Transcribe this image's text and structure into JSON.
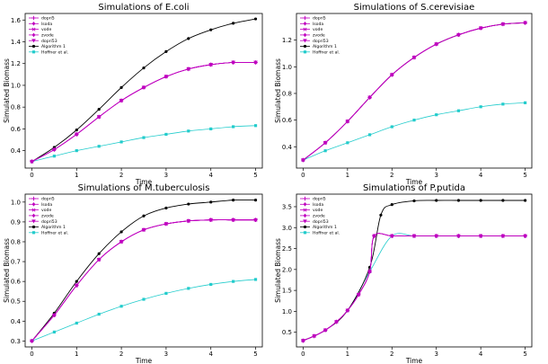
{
  "chart_data": [
    {
      "type": "line",
      "title": "Simulations of E.coli",
      "xlabel": "Time",
      "ylabel": "Simulated Biomass",
      "xlim": [
        -0.15,
        5.15
      ],
      "ylim": [
        0.24,
        1.66
      ],
      "xticks": [
        "0",
        "1",
        "2",
        "3",
        "4",
        "5"
      ],
      "yticks": [
        "0.4",
        "0.6",
        "0.8",
        "1.0",
        "1.2",
        "1.4",
        "1.6"
      ],
      "legend_position": "top-left",
      "series": [
        {
          "name": "dopri5",
          "color": "#bf00bf",
          "marker": "plus",
          "x": [
            0,
            0.5,
            1,
            1.5,
            2,
            2.5,
            3,
            3.5,
            4,
            4.5,
            5
          ],
          "y": [
            0.3,
            0.41,
            0.55,
            0.71,
            0.86,
            0.98,
            1.08,
            1.15,
            1.19,
            1.21,
            1.21
          ]
        },
        {
          "name": "lsoda",
          "color": "#bf00bf",
          "marker": "diamond",
          "x": [
            0,
            0.5,
            1,
            1.5,
            2,
            2.5,
            3,
            3.5,
            4,
            4.5,
            5
          ],
          "y": [
            0.3,
            0.41,
            0.55,
            0.71,
            0.86,
            0.98,
            1.08,
            1.15,
            1.19,
            1.21,
            1.21
          ]
        },
        {
          "name": "vode",
          "color": "#bf00bf",
          "marker": "x",
          "x": [
            0,
            0.5,
            1,
            1.5,
            2,
            2.5,
            3,
            3.5,
            4,
            4.5,
            5
          ],
          "y": [
            0.3,
            0.41,
            0.55,
            0.71,
            0.86,
            0.98,
            1.08,
            1.15,
            1.19,
            1.21,
            1.21
          ]
        },
        {
          "name": "zvode",
          "color": "#bf00bf",
          "marker": "diamond",
          "x": [
            0,
            0.5,
            1,
            1.5,
            2,
            2.5,
            3,
            3.5,
            4,
            4.5,
            5
          ],
          "y": [
            0.3,
            0.41,
            0.55,
            0.71,
            0.86,
            0.98,
            1.08,
            1.15,
            1.19,
            1.21,
            1.21
          ]
        },
        {
          "name": "dopri53",
          "color": "#bf00bf",
          "marker": "tri",
          "x": [
            0,
            0.5,
            1,
            1.5,
            2,
            2.5,
            3,
            3.5,
            4,
            4.5,
            5
          ],
          "y": [
            0.3,
            0.41,
            0.55,
            0.71,
            0.86,
            0.98,
            1.08,
            1.15,
            1.19,
            1.21,
            1.21
          ]
        },
        {
          "name": "Algorithm 1",
          "color": "#000000",
          "marker": "dot",
          "x": [
            0,
            0.5,
            1,
            1.5,
            2,
            2.5,
            3,
            3.5,
            4,
            4.5,
            5
          ],
          "y": [
            0.3,
            0.43,
            0.59,
            0.78,
            0.98,
            1.16,
            1.31,
            1.43,
            1.51,
            1.57,
            1.61
          ]
        },
        {
          "name": "Hoffner et al.",
          "color": "#22cccc",
          "marker": "square",
          "x": [
            0,
            0.5,
            1,
            1.5,
            2,
            2.5,
            3,
            3.5,
            4,
            4.5,
            5
          ],
          "y": [
            0.3,
            0.35,
            0.4,
            0.44,
            0.48,
            0.52,
            0.55,
            0.58,
            0.6,
            0.62,
            0.63
          ]
        }
      ]
    },
    {
      "type": "line",
      "title": "Simulations of S.cerevisiae",
      "xlabel": "Time",
      "ylabel": "Simulated Biomass",
      "xlim": [
        -0.15,
        5.15
      ],
      "ylim": [
        0.24,
        1.4
      ],
      "xticks": [
        "0",
        "1",
        "2",
        "3",
        "4",
        "5"
      ],
      "yticks": [
        "0.4",
        "0.6",
        "0.8",
        "1.0",
        "1.2"
      ],
      "legend_position": "top-left",
      "series": [
        {
          "name": "dopri5",
          "color": "#bf00bf",
          "marker": "plus",
          "x": [
            0,
            0.5,
            1,
            1.5,
            2,
            2.5,
            3,
            3.5,
            4,
            4.5,
            5
          ],
          "y": [
            0.3,
            0.43,
            0.59,
            0.77,
            0.94,
            1.07,
            1.17,
            1.24,
            1.29,
            1.32,
            1.33
          ]
        },
        {
          "name": "lsoda",
          "color": "#bf00bf",
          "marker": "diamond",
          "x": [
            0,
            0.5,
            1,
            1.5,
            2,
            2.5,
            3,
            3.5,
            4,
            4.5,
            5
          ],
          "y": [
            0.3,
            0.43,
            0.59,
            0.77,
            0.94,
            1.07,
            1.17,
            1.24,
            1.29,
            1.32,
            1.33
          ]
        },
        {
          "name": "vode",
          "color": "#bf00bf",
          "marker": "x",
          "x": [
            0,
            0.5,
            1,
            1.5,
            2,
            2.5,
            3,
            3.5,
            4,
            4.5,
            5
          ],
          "y": [
            0.3,
            0.43,
            0.59,
            0.77,
            0.94,
            1.07,
            1.17,
            1.24,
            1.29,
            1.32,
            1.33
          ]
        },
        {
          "name": "zvode",
          "color": "#bf00bf",
          "marker": "diamond",
          "x": [
            0,
            0.5,
            1,
            1.5,
            2,
            2.5,
            3,
            3.5,
            4,
            4.5,
            5
          ],
          "y": [
            0.3,
            0.43,
            0.59,
            0.77,
            0.94,
            1.07,
            1.17,
            1.24,
            1.29,
            1.32,
            1.33
          ]
        },
        {
          "name": "dopri53",
          "color": "#bf00bf",
          "marker": "tri",
          "x": [
            0,
            0.5,
            1,
            1.5,
            2,
            2.5,
            3,
            3.5,
            4,
            4.5,
            5
          ],
          "y": [
            0.3,
            0.43,
            0.59,
            0.77,
            0.94,
            1.07,
            1.17,
            1.24,
            1.29,
            1.32,
            1.33
          ]
        },
        {
          "name": "Algorithm 1",
          "color": "#000000",
          "marker": "dot",
          "x": [
            0,
            0.5,
            1,
            1.5,
            2,
            2.5,
            3,
            3.5,
            4,
            4.5,
            5
          ],
          "y": [
            0.3,
            0.43,
            0.59,
            0.77,
            0.94,
            1.07,
            1.17,
            1.24,
            1.29,
            1.32,
            1.33
          ]
        },
        {
          "name": "Hoffner et al.",
          "color": "#22cccc",
          "marker": "square",
          "x": [
            0,
            0.5,
            1,
            1.5,
            2,
            2.5,
            3,
            3.5,
            4,
            4.5,
            5
          ],
          "y": [
            0.3,
            0.37,
            0.43,
            0.49,
            0.55,
            0.6,
            0.64,
            0.67,
            0.7,
            0.72,
            0.73
          ]
        }
      ]
    },
    {
      "type": "line",
      "title": "Simulations of M.tuberculosis",
      "xlabel": "Time",
      "ylabel": "Simulated Biomass",
      "xlim": [
        -0.15,
        5.15
      ],
      "ylim": [
        0.27,
        1.04
      ],
      "xticks": [
        "0",
        "1",
        "2",
        "3",
        "4",
        "5"
      ],
      "yticks": [
        "0.3",
        "0.4",
        "0.5",
        "0.6",
        "0.7",
        "0.8",
        "0.9",
        "1.0"
      ],
      "legend_position": "top-left",
      "series": [
        {
          "name": "dopri5",
          "color": "#bf00bf",
          "marker": "plus",
          "x": [
            0,
            0.5,
            1,
            1.5,
            2,
            2.5,
            3,
            3.5,
            4,
            4.5,
            5
          ],
          "y": [
            0.3,
            0.43,
            0.58,
            0.71,
            0.8,
            0.86,
            0.89,
            0.905,
            0.91,
            0.91,
            0.91
          ]
        },
        {
          "name": "lsoda",
          "color": "#bf00bf",
          "marker": "diamond",
          "x": [
            0,
            0.5,
            1,
            1.5,
            2,
            2.5,
            3,
            3.5,
            4,
            4.5,
            5
          ],
          "y": [
            0.3,
            0.43,
            0.58,
            0.71,
            0.8,
            0.86,
            0.89,
            0.905,
            0.91,
            0.91,
            0.91
          ]
        },
        {
          "name": "vode",
          "color": "#bf00bf",
          "marker": "x",
          "x": [
            0,
            0.5,
            1,
            1.5,
            2,
            2.5,
            3,
            3.5,
            4,
            4.5,
            5
          ],
          "y": [
            0.3,
            0.43,
            0.58,
            0.71,
            0.8,
            0.86,
            0.89,
            0.905,
            0.91,
            0.91,
            0.91
          ]
        },
        {
          "name": "zvode",
          "color": "#bf00bf",
          "marker": "diamond",
          "x": [
            0,
            0.5,
            1,
            1.5,
            2,
            2.5,
            3,
            3.5,
            4,
            4.5,
            5
          ],
          "y": [
            0.3,
            0.43,
            0.58,
            0.71,
            0.8,
            0.86,
            0.89,
            0.905,
            0.91,
            0.91,
            0.91
          ]
        },
        {
          "name": "dopri53",
          "color": "#bf00bf",
          "marker": "tri",
          "x": [
            0,
            0.5,
            1,
            1.5,
            2,
            2.5,
            3,
            3.5,
            4,
            4.5,
            5
          ],
          "y": [
            0.3,
            0.43,
            0.58,
            0.71,
            0.8,
            0.86,
            0.89,
            0.905,
            0.91,
            0.91,
            0.91
          ]
        },
        {
          "name": "Algorithm 1",
          "color": "#000000",
          "marker": "dot",
          "x": [
            0,
            0.5,
            1,
            1.5,
            2,
            2.5,
            3,
            3.5,
            4,
            4.5,
            5
          ],
          "y": [
            0.3,
            0.44,
            0.6,
            0.74,
            0.85,
            0.93,
            0.97,
            0.99,
            1.0,
            1.01,
            1.01
          ]
        },
        {
          "name": "Hoffner et al.",
          "color": "#22cccc",
          "marker": "square",
          "x": [
            0,
            0.5,
            1,
            1.5,
            2,
            2.5,
            3,
            3.5,
            4,
            4.5,
            5
          ],
          "y": [
            0.3,
            0.345,
            0.39,
            0.435,
            0.475,
            0.51,
            0.54,
            0.565,
            0.585,
            0.6,
            0.61
          ]
        }
      ]
    },
    {
      "type": "line",
      "title": "Simulations of P.putida",
      "xlabel": "Time",
      "ylabel": "Simulated Biomass",
      "xlim": [
        -0.15,
        5.15
      ],
      "ylim": [
        0.15,
        3.8
      ],
      "xticks": [
        "0",
        "1",
        "2",
        "3",
        "4",
        "5"
      ],
      "yticks": [
        "0.5",
        "1.0",
        "1.5",
        "2.0",
        "2.5",
        "3.0",
        "3.5"
      ],
      "legend_position": "top-left",
      "series": [
        {
          "name": "dopri5",
          "color": "#bf00bf",
          "marker": "plus",
          "x": [
            0,
            0.25,
            0.5,
            0.75,
            1,
            1.25,
            1.5,
            1.6,
            2,
            2.5,
            3,
            3.5,
            4,
            4.5,
            5
          ],
          "y": [
            0.3,
            0.41,
            0.55,
            0.75,
            1.02,
            1.4,
            1.95,
            2.8,
            2.8,
            2.8,
            2.8,
            2.8,
            2.8,
            2.8,
            2.8
          ]
        },
        {
          "name": "lsoda",
          "color": "#bf00bf",
          "marker": "diamond",
          "x": [
            0,
            0.25,
            0.5,
            0.75,
            1,
            1.25,
            1.5,
            1.6,
            2,
            2.5,
            3,
            3.5,
            4,
            4.5,
            5
          ],
          "y": [
            0.3,
            0.41,
            0.55,
            0.75,
            1.02,
            1.4,
            1.95,
            2.8,
            2.8,
            2.8,
            2.8,
            2.8,
            2.8,
            2.8,
            2.8
          ]
        },
        {
          "name": "vode",
          "color": "#bf00bf",
          "marker": "x",
          "x": [
            0,
            0.25,
            0.5,
            0.75,
            1,
            1.25,
            1.5,
            1.6,
            2,
            2.5,
            3,
            3.5,
            4,
            4.5,
            5
          ],
          "y": [
            0.3,
            0.41,
            0.55,
            0.75,
            1.02,
            1.4,
            1.95,
            2.8,
            2.8,
            2.8,
            2.8,
            2.8,
            2.8,
            2.8,
            2.8
          ]
        },
        {
          "name": "zvode",
          "color": "#bf00bf",
          "marker": "diamond",
          "x": [
            0,
            0.25,
            0.5,
            0.75,
            1,
            1.25,
            1.5,
            1.6,
            2,
            2.5,
            3,
            3.5,
            4,
            4.5,
            5
          ],
          "y": [
            0.3,
            0.41,
            0.55,
            0.75,
            1.02,
            1.4,
            1.95,
            2.8,
            2.8,
            2.8,
            2.8,
            2.8,
            2.8,
            2.8,
            2.8
          ]
        },
        {
          "name": "dopri53",
          "color": "#bf00bf",
          "marker": "tri",
          "x": [
            0,
            0.25,
            0.5,
            0.75,
            1,
            1.25,
            1.5,
            1.6,
            2,
            2.5,
            3,
            3.5,
            4,
            4.5,
            5
          ],
          "y": [
            0.3,
            0.41,
            0.55,
            0.75,
            1.02,
            1.4,
            1.95,
            2.8,
            2.8,
            2.8,
            2.8,
            2.8,
            2.8,
            2.8,
            2.8
          ]
        },
        {
          "name": "Algorithm 1",
          "color": "#000000",
          "marker": "dot",
          "x": [
            0,
            0.5,
            1,
            1.5,
            1.75,
            2,
            2.5,
            3,
            3.5,
            4,
            4.5,
            5
          ],
          "y": [
            0.3,
            0.55,
            1.02,
            2.05,
            3.3,
            3.55,
            3.64,
            3.65,
            3.65,
            3.65,
            3.65,
            3.65
          ]
        },
        {
          "name": "Hoffner et al.",
          "color": "#22cccc",
          "marker": "square",
          "x": [
            0,
            0.5,
            1,
            1.5,
            2,
            2.5,
            3,
            3.5,
            4,
            4.5,
            5
          ],
          "y": [
            0.3,
            0.55,
            1.02,
            1.95,
            2.8,
            2.8,
            2.8,
            2.8,
            2.8,
            2.8,
            2.8
          ]
        }
      ]
    }
  ]
}
